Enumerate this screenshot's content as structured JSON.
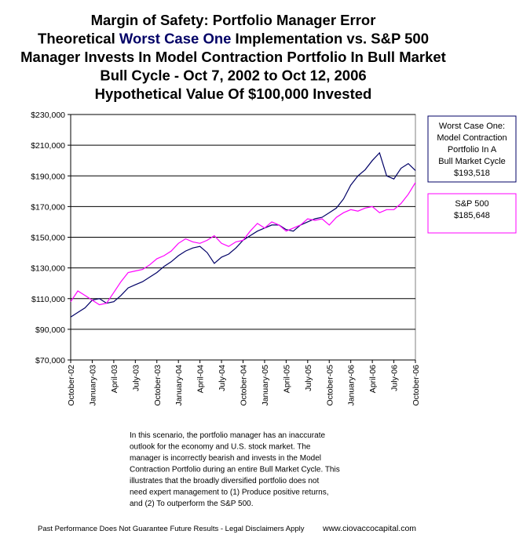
{
  "chart_data": {
    "type": "line",
    "title_lines": [
      "Margin of Safety:  Portfolio Manager Error",
      [
        "Theoretical ",
        "Worst Case One",
        " Implementation vs. S&P 500"
      ],
      "Manager Invests In Model Contraction Portfolio In Bull Market",
      "Bull Cycle  - Oct 7, 2002 to Oct 12, 2006",
      "Hypothetical Value Of $100,000 Invested"
    ],
    "categories": [
      "October-02",
      null,
      null,
      "January-03",
      null,
      null,
      "April-03",
      null,
      null,
      "July-03",
      null,
      null,
      "October-03",
      null,
      null,
      "January-04",
      null,
      null,
      "April-04",
      null,
      null,
      "July-04",
      null,
      null,
      "October-04",
      null,
      null,
      "January-05",
      null,
      null,
      "April-05",
      null,
      null,
      "July-05",
      null,
      null,
      "October-05",
      null,
      null,
      "January-06",
      null,
      null,
      "April-06",
      null,
      null,
      "July-06",
      null,
      null,
      "October-06"
    ],
    "series": [
      {
        "name": [
          "Worst Case One:",
          "Model Contraction",
          "Portfolio In A",
          "Bull Market Cycle"
        ],
        "end_label": "$193,518",
        "color": "#000066",
        "values": [
          98000,
          101000,
          104000,
          109000,
          110000,
          107000,
          108000,
          112000,
          117000,
          119000,
          121000,
          124000,
          127000,
          131000,
          134000,
          138000,
          141000,
          143000,
          144000,
          140000,
          133000,
          137000,
          139000,
          143000,
          148000,
          151000,
          154000,
          156000,
          158000,
          158000,
          155000,
          154000,
          158000,
          160000,
          162000,
          163000,
          166000,
          169000,
          175000,
          184000,
          190000,
          194000,
          200000,
          205000,
          190000,
          188000,
          195000,
          198000,
          193518
        ]
      },
      {
        "name": [
          "S&P 500"
        ],
        "end_label": "$185,648",
        "color": "#ff00ff",
        "values": [
          108000,
          115000,
          112000,
          109000,
          106000,
          107000,
          114000,
          121000,
          127000,
          128000,
          129000,
          132000,
          136000,
          138000,
          141000,
          146000,
          149000,
          147000,
          146000,
          148000,
          151000,
          146000,
          144000,
          147000,
          148000,
          154000,
          159000,
          156000,
          160000,
          158000,
          154000,
          156000,
          158000,
          162000,
          161000,
          162000,
          158000,
          163000,
          166000,
          168000,
          167000,
          169000,
          170000,
          166000,
          168000,
          168000,
          172000,
          178000,
          185648
        ]
      }
    ],
    "ylim": [
      70000,
      230000
    ],
    "yticks": [
      {
        "value": 70000,
        "label": "$70,000"
      },
      {
        "value": 90000,
        "label": "$90,000"
      },
      {
        "value": 110000,
        "label": "$110,000"
      },
      {
        "value": 130000,
        "label": "$130,000"
      },
      {
        "value": 150000,
        "label": "$150,000"
      },
      {
        "value": 170000,
        "label": "$170,000"
      },
      {
        "value": 190000,
        "label": "$190,000"
      },
      {
        "value": 210000,
        "label": "$210,000"
      },
      {
        "value": 230000,
        "label": "$230,000"
      }
    ],
    "grid": true,
    "note_lines": [
      "In this scenario, the portfolio manager has an inaccurate",
      "outlook for the economy and U.S. stock market.  The",
      "manager is incorrectly bearish and invests in the Model",
      "Contraction Portfolio during an entire Bull Market Cycle.  This",
      "illustrates that the broadly diversified portfolio does not",
      "need expert management to (1) Produce positive returns,",
      "and (2) To outperform the S&P 500."
    ],
    "footer_left": "Past Performance Does Not Guarantee Future Results - Legal Disclaimers Apply",
    "footer_right": "www.ciovaccocapital.com"
  }
}
